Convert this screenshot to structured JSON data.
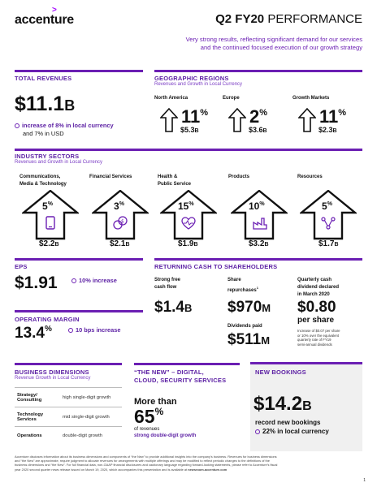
{
  "header": {
    "logo": "accenture",
    "title_bold": "Q2 FY20",
    "title_rest": " PERFORMANCE",
    "subtitle_line1": "Very strong results, reflecting significant demand for our services",
    "subtitle_line2": "and the continued focused execution of our growth strategy"
  },
  "total_revenues": {
    "title": "TOTAL REVENUES",
    "value": "$11.1",
    "unit": "B",
    "line1": "increase of 8% in local currency",
    "line2": "and 7% in USD"
  },
  "geographic": {
    "title": "GEOGRAPHIC REGIONS",
    "subtitle": "Revenues and Growth in Local Currency",
    "regions": [
      {
        "name": "North America",
        "pct": "11",
        "value": "$5.3",
        "unit": "B"
      },
      {
        "name": "Europe",
        "pct": "2",
        "value": "$3.6",
        "unit": "B"
      },
      {
        "name": "Growth Markets",
        "pct": "11",
        "value": "$2.3",
        "unit": "B"
      }
    ]
  },
  "industry": {
    "title": "INDUSTRY SECTORS",
    "subtitle": "Revenues and Growth in Local Currency",
    "sectors": [
      {
        "name1": "Communications,",
        "name2": "Media & Technology",
        "pct": "5",
        "value": "$2.2",
        "unit": "B",
        "icon": "phone-icon"
      },
      {
        "name1": "Financial Services",
        "name2": "",
        "pct": "3",
        "value": "$2.1",
        "unit": "B",
        "icon": "coins-icon"
      },
      {
        "name1": "Health &",
        "name2": "Public Service",
        "pct": "15",
        "value": "$1.9",
        "unit": "B",
        "icon": "heart-pulse-icon"
      },
      {
        "name1": "Products",
        "name2": "",
        "pct": "10",
        "value": "$3.2",
        "unit": "B",
        "icon": "factory-icon"
      },
      {
        "name1": "Resources",
        "name2": "",
        "pct": "5",
        "value": "$1.7",
        "unit": "B",
        "icon": "network-icon"
      }
    ]
  },
  "eps": {
    "title": "EPS",
    "value": "$1.91",
    "note": "10% increase"
  },
  "operating_margin": {
    "title": "OPERATING MARGIN",
    "value": "13.4",
    "pct": "%",
    "note": "10 bps increase"
  },
  "returning_cash": {
    "title": "RETURNING CASH TO SHAREHOLDERS",
    "fcf_label1": "Strong free",
    "fcf_label2": "cash flow",
    "fcf_value": "$1.4",
    "fcf_unit": "B",
    "rep_label1": "Share",
    "rep_label2": "repurchases",
    "rep_sup": "1",
    "rep_value": "$970",
    "rep_unit": "M",
    "div_label": "Dividends paid",
    "div_value": "$511",
    "div_unit": "M",
    "qcd_label1": "Quarterly cash",
    "qcd_label2": "dividend declared",
    "qcd_label3": "in March 2020",
    "qcd_value": "$0.80",
    "qcd_per": "per share",
    "qcd_note1": "Increase of $0.07 per share",
    "qcd_note2": "or 10% over the equivalent",
    "qcd_note3": "quarterly rate of FY19",
    "qcd_note4": "semi-annual dividends"
  },
  "business_dimensions": {
    "title": "BUSINESS DIMENSIONS",
    "subtitle": "Revenue Growth in Local Currency",
    "rows": [
      {
        "k1": "Strategy/",
        "k2": "Consulting",
        "v": "high single-digit growth"
      },
      {
        "k1": "Technology",
        "k2": "Services",
        "v": "mid single-digit growth"
      },
      {
        "k1": "Operations",
        "k2": "",
        "v": "double-digit growth"
      }
    ]
  },
  "the_new": {
    "title1": "“THE NEW” – DIGITAL,",
    "title2": "CLOUD, SECURITY SERVICES",
    "more_than": "More than",
    "value": "65",
    "pct": "%",
    "of_rev": "of revenues",
    "growth": "strong double-digit growth"
  },
  "new_bookings": {
    "title": "NEW BOOKINGS",
    "value": "$14.2",
    "unit": "B",
    "line1": "record new bookings",
    "line2": "22% in local currency"
  },
  "footer": {
    "line1": "Accenture discloses information about its business dimensions and components of “the New” to provide additional insights into the company’s business. Revenues for business dimensions",
    "line2": "and “the New” are approximate, require judgment to allocate revenues for arrangements with multiple offerings and may be modified to reflect periodic changes to the definitions of the",
    "line3": "business dimensions and “the New”. For full financial data, non-GAAP financial disclosures and cautionary language regarding forward-looking statements, please refer to Accenture’s fiscal",
    "line4": "year 2020 second quarter news release issued on March 19, 2020, which accompanies this presentation and is available at ",
    "link": "newsroom.accenture.com",
    "page": "1"
  },
  "colors": {
    "accent": "#6b1fb3",
    "accent_light": "#7a3cc4"
  }
}
